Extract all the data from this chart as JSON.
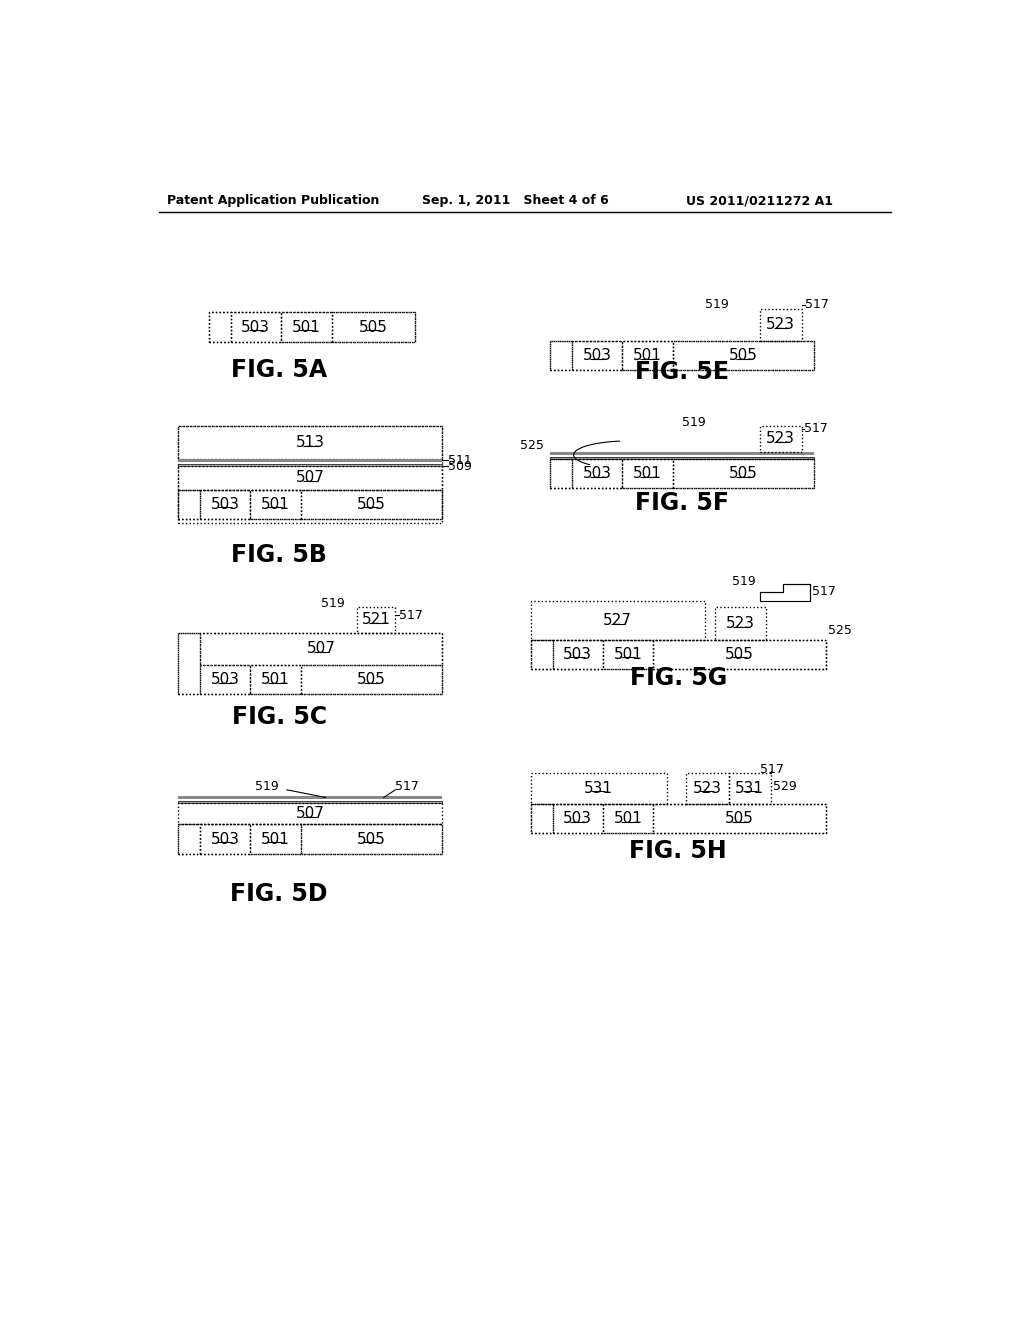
{
  "bg_color": "#ffffff",
  "header_left": "Patent Application Publication",
  "header_mid": "Sep. 1, 2011   Sheet 4 of 6",
  "header_right": "US 2011/0211272 A1"
}
